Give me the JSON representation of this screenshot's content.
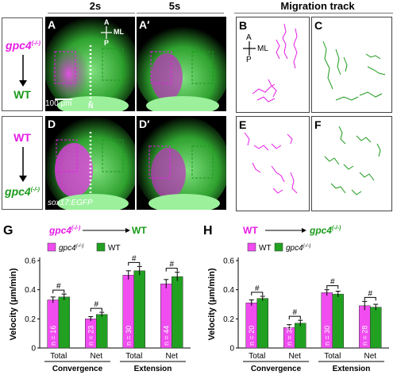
{
  "headers": {
    "col1": "2s",
    "col2": "5s",
    "col3": "Migration track"
  },
  "row1": {
    "donor": "gpc4",
    "donor_sup": "(-/-)",
    "host": "WT",
    "panels": {
      "A": "A",
      "A2": "A′",
      "B": "B",
      "C": "C"
    },
    "axis": {
      "A": "A",
      "P": "P",
      "ML": "ML"
    },
    "scalebar": "100 μm",
    "notochord": "N"
  },
  "row2": {
    "donor": "WT",
    "host": "gpc4",
    "host_sup": "(-/-)",
    "panels": {
      "D": "D",
      "D2": "D′",
      "E": "E",
      "F": "F"
    },
    "transgene": "sox17:EGFP"
  },
  "colors": {
    "magenta": "#e61ce6",
    "green": "#1a9a1a",
    "bar_magenta": "#f04cf0",
    "bar_green": "#22a022"
  },
  "chart_data": [
    {
      "type": "bar",
      "panel": "G",
      "title_donor": "gpc4",
      "title_donor_sup": "(-/-)",
      "title_host": "WT",
      "legend": [
        {
          "label": "gpc4",
          "sup": "(-/-)",
          "color": "#f04cf0"
        },
        {
          "label": "WT",
          "color": "#22a022"
        }
      ],
      "ylabel": "Velocity (μm/min)",
      "ylim": [
        0,
        0.6
      ],
      "yticks": [
        "0",
        "0.2",
        "0.4",
        "0.6"
      ],
      "groups": [
        "Convergence",
        "Extension"
      ],
      "categories": [
        "Total",
        "Net",
        "Total",
        "Net"
      ],
      "series": [
        {
          "name": "gpc4(-/-)",
          "values": [
            0.33,
            0.2,
            0.5,
            0.44
          ],
          "errors": [
            0.02,
            0.015,
            0.03,
            0.03
          ]
        },
        {
          "name": "WT",
          "values": [
            0.35,
            0.23,
            0.53,
            0.49
          ],
          "errors": [
            0.02,
            0.015,
            0.03,
            0.03
          ]
        }
      ],
      "n_labels": [
        "n = 16",
        "n = 23",
        "n = 30",
        "n = 44"
      ],
      "sig": [
        "#",
        "#",
        "#",
        "#"
      ]
    },
    {
      "type": "bar",
      "panel": "H",
      "title_donor": "WT",
      "title_host": "gpc4",
      "title_host_sup": "(-/-)",
      "legend": [
        {
          "label": "WT",
          "color": "#f04cf0"
        },
        {
          "label": "gpc4",
          "sup": "(-/-)",
          "color": "#22a022"
        }
      ],
      "ylabel": "Velocity (μm/min)",
      "ylim": [
        0,
        0.6
      ],
      "yticks": [
        "0",
        "0.2",
        "0.4",
        "0.6"
      ],
      "groups": [
        "Convergence",
        "Extension"
      ],
      "categories": [
        "Total",
        "Net",
        "Total",
        "Net"
      ],
      "series": [
        {
          "name": "WT",
          "values": [
            0.31,
            0.14,
            0.38,
            0.29
          ],
          "errors": [
            0.02,
            0.02,
            0.02,
            0.03
          ]
        },
        {
          "name": "gpc4(-/-)",
          "values": [
            0.34,
            0.17,
            0.37,
            0.28
          ],
          "errors": [
            0.015,
            0.02,
            0.02,
            0.02
          ]
        }
      ],
      "n_labels": [
        "n = 20",
        "n = 30",
        "n = 30",
        "n = 28"
      ],
      "sig": [
        "#",
        "#",
        "#",
        "#"
      ]
    }
  ]
}
